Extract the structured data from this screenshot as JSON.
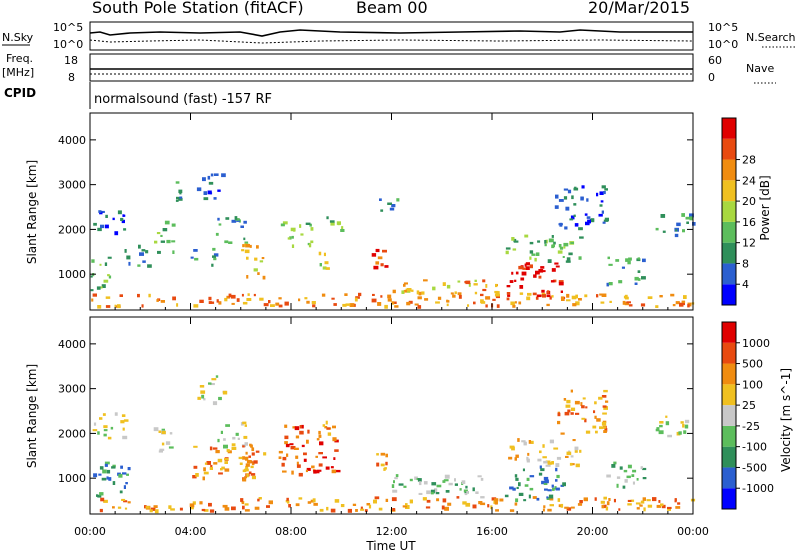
{
  "header": {
    "station": "South Pole Station (fitACF)",
    "beam": "Beam 00",
    "date": "20/Mar/2015"
  },
  "summary_panels": {
    "nsky_label": "N.Sky",
    "nsky_ticks": [
      "10^5",
      "10^0"
    ],
    "nsearch_label": "N.Search",
    "nsearch_ticks": [
      "10^5",
      "10^0"
    ],
    "freq_label_line1": "Freq.",
    "freq_label_line2": "[MHz]",
    "freq_ticks": [
      "18",
      "8"
    ],
    "nave_label": "Nave",
    "nave_ticks": [
      "60",
      "0"
    ],
    "cpid_label": "CPID",
    "cpid_text": "normalsound (fast) -157 RF"
  },
  "chart_data": [
    {
      "type": "heatmap",
      "panel": "power",
      "ylabel": "Slant Range [km]",
      "yticks": [
        "1000",
        "2000",
        "3000",
        "4000"
      ],
      "ylim": [
        200,
        4600
      ],
      "xlim_hours": [
        0,
        24
      ],
      "colorbar": {
        "label": "Power [dB]",
        "ticks": [
          "4",
          "8",
          "12",
          "16",
          "20",
          "24",
          "28"
        ],
        "colors": [
          "#0000ff",
          "#2b5fd0",
          "#2f8f5a",
          "#5cbd5c",
          "#a8d840",
          "#f0c020",
          "#f08c10",
          "#e84a10",
          "#e00000"
        ]
      },
      "echo_regions": [
        {
          "t": [
            0.0,
            24.0
          ],
          "r": [
            300,
            600
          ],
          "level": 6
        },
        {
          "t": [
            0.0,
            0.8
          ],
          "r": [
            600,
            1400
          ],
          "level": 3
        },
        {
          "t": [
            0.1,
            1.4
          ],
          "r": [
            1900,
            2500
          ],
          "level": 1
        },
        {
          "t": [
            1.3,
            2.3
          ],
          "r": [
            1200,
            1700
          ],
          "level": 2
        },
        {
          "t": [
            2.5,
            3.3
          ],
          "r": [
            1500,
            2200
          ],
          "level": 3
        },
        {
          "t": [
            3.2,
            3.8
          ],
          "r": [
            2600,
            3200
          ],
          "level": 2
        },
        {
          "t": [
            4.0,
            5.0
          ],
          "r": [
            1200,
            1600
          ],
          "level": 2
        },
        {
          "t": [
            4.2,
            5.3
          ],
          "r": [
            2700,
            3300
          ],
          "level": 1
        },
        {
          "t": [
            5.0,
            6.2
          ],
          "r": [
            1700,
            2300
          ],
          "level": 2
        },
        {
          "t": [
            6.0,
            7.0
          ],
          "r": [
            900,
            1700
          ],
          "level": 5
        },
        {
          "t": [
            7.5,
            8.8
          ],
          "r": [
            1600,
            2200
          ],
          "level": 3
        },
        {
          "t": [
            8.8,
            9.5
          ],
          "r": [
            1100,
            1600
          ],
          "level": 4
        },
        {
          "t": [
            9.2,
            10.0
          ],
          "r": [
            1900,
            2300
          ],
          "level": 3
        },
        {
          "t": [
            11.0,
            11.8
          ],
          "r": [
            1100,
            1600
          ],
          "level": 7
        },
        {
          "t": [
            11.5,
            12.2
          ],
          "r": [
            2300,
            2700
          ],
          "level": 2
        },
        {
          "t": [
            12.0,
            15.5
          ],
          "r": [
            600,
            900
          ],
          "level": 5
        },
        {
          "t": [
            14.5,
            16.2
          ],
          "r": [
            550,
            900
          ],
          "level": 6
        },
        {
          "t": [
            16.5,
            18.8
          ],
          "r": [
            500,
            1300
          ],
          "level": 8
        },
        {
          "t": [
            16.5,
            19.5
          ],
          "r": [
            1300,
            1900
          ],
          "level": 3
        },
        {
          "t": [
            18.5,
            20.5
          ],
          "r": [
            2000,
            3000
          ],
          "level": 1
        },
        {
          "t": [
            20.5,
            22.0
          ],
          "r": [
            800,
            1400
          ],
          "level": 2
        },
        {
          "t": [
            22.5,
            24.0
          ],
          "r": [
            1900,
            2400
          ],
          "level": 2
        }
      ]
    },
    {
      "type": "heatmap",
      "panel": "velocity",
      "ylabel": "Slant Range [km]",
      "yticks": [
        "1000",
        "2000",
        "3000",
        "4000"
      ],
      "ylim": [
        200,
        4600
      ],
      "xlim_hours": [
        0,
        24
      ],
      "colorbar": {
        "label": "Velocity [m s^-1]",
        "ticks": [
          "1000",
          "500",
          "100",
          "25",
          "-25",
          "-100",
          "-500",
          "-1000"
        ],
        "colors": [
          "#0000ff",
          "#2b5fd0",
          "#2f8f5a",
          "#5cbd5c",
          "#c8c8c8",
          "#f0c020",
          "#f08c10",
          "#e84a10",
          "#e00000"
        ]
      },
      "echo_regions": [
        {
          "t": [
            0.0,
            24.0
          ],
          "r": [
            300,
            600
          ],
          "level": 6
        },
        {
          "t": [
            0.0,
            1.5
          ],
          "r": [
            600,
            1400
          ],
          "level": 2
        },
        {
          "t": [
            0.1,
            1.4
          ],
          "r": [
            1900,
            2500
          ],
          "level": 4
        },
        {
          "t": [
            2.5,
            3.3
          ],
          "r": [
            1500,
            2200
          ],
          "level": 4
        },
        {
          "t": [
            4.2,
            5.3
          ],
          "r": [
            2700,
            3300
          ],
          "level": 4
        },
        {
          "t": [
            5.0,
            6.2
          ],
          "r": [
            1700,
            2300
          ],
          "level": 4
        },
        {
          "t": [
            4.0,
            6.5
          ],
          "r": [
            1000,
            1800
          ],
          "level": 6
        },
        {
          "t": [
            6.0,
            7.0
          ],
          "r": [
            900,
            1700
          ],
          "level": 6
        },
        {
          "t": [
            7.5,
            9.8
          ],
          "r": [
            1100,
            2200
          ],
          "level": 7
        },
        {
          "t": [
            9.2,
            10.0
          ],
          "r": [
            1900,
            2300
          ],
          "level": 6
        },
        {
          "t": [
            11.0,
            11.8
          ],
          "r": [
            1100,
            1600
          ],
          "level": 6
        },
        {
          "t": [
            12.0,
            16.0
          ],
          "r": [
            600,
            1100
          ],
          "level": 3
        },
        {
          "t": [
            16.5,
            18.8
          ],
          "r": [
            500,
            1300
          ],
          "level": 2
        },
        {
          "t": [
            16.5,
            19.5
          ],
          "r": [
            1300,
            1900
          ],
          "level": 5
        },
        {
          "t": [
            18.5,
            20.5
          ],
          "r": [
            2000,
            3000
          ],
          "level": 6
        },
        {
          "t": [
            20.5,
            22.0
          ],
          "r": [
            800,
            1400
          ],
          "level": 3
        },
        {
          "t": [
            22.5,
            24.0
          ],
          "r": [
            1900,
            2400
          ],
          "level": 4
        }
      ]
    }
  ],
  "time_axis": {
    "title": "Time UT",
    "ticks": [
      "00:00",
      "04:00",
      "08:00",
      "12:00",
      "16:00",
      "20:00",
      "00:00"
    ]
  }
}
